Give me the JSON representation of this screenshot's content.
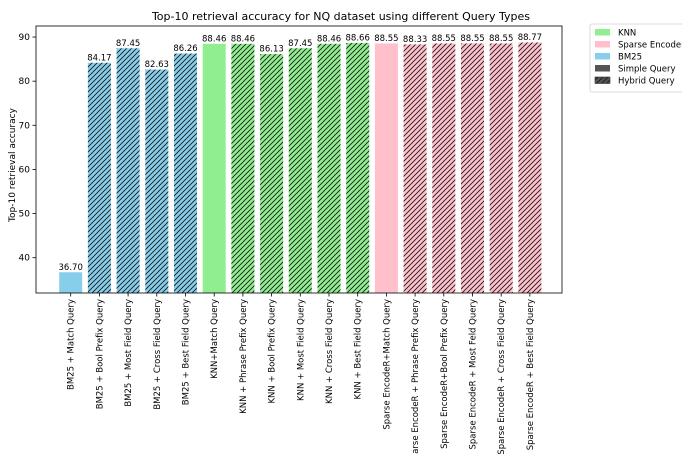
{
  "chart_data": {
    "type": "bar",
    "title": "Top-10 retrieval accuracy for NQ dataset using different Query Types",
    "xlabel": "",
    "ylabel": "Top-10 retrieval accuracy",
    "ylim": [
      32,
      92.5
    ],
    "yticks": [
      40,
      50,
      60,
      70,
      80,
      90
    ],
    "grid": false,
    "legend_position": "outside-top-right",
    "categories": [
      "BM25 + Match Query",
      "BM25 + Bool Prefix Query",
      "BM25 + Most Field Query",
      "BM25 + Cross Field Query",
      "BM25 + Best Field Query",
      "KNN+Match Query",
      "KNN + Phrase Prefix Query",
      "KNN + Bool Prefix Query",
      "KNN + Most  Field Query",
      "KNN  + Cross Field Query",
      "KNN +  Best Field Query",
      "Sparse EncodeR+Match Query",
      "Sparse EncodeR + Phrase Prefix Query",
      "Sparse EncodeR+Bool Prefix Query",
      "Sparse EncodeR + Most  Feld Query",
      "Sparse EncodeR  + Cross Field Query",
      "Sparse EncodeR  + Best Field Query"
    ],
    "values": [
      36.7,
      84.17,
      87.45,
      82.63,
      86.26,
      88.46,
      88.46,
      86.13,
      87.45,
      88.46,
      88.66,
      88.55,
      88.33,
      88.55,
      88.55,
      88.55,
      88.77
    ],
    "value_labels": [
      "36.70",
      "84.17",
      "87.45",
      "82.63",
      "86.26",
      "88.46",
      "88.46",
      "86.13",
      "87.45",
      "88.46",
      "88.66",
      "88.55",
      "88.33",
      "88.55",
      "88.55",
      "88.55",
      "88.77"
    ],
    "group": [
      "bm25",
      "bm25",
      "bm25",
      "bm25",
      "bm25",
      "knn",
      "knn",
      "knn",
      "knn",
      "knn",
      "knn",
      "sparse",
      "sparse",
      "sparse",
      "sparse",
      "sparse",
      "sparse"
    ],
    "hatched": [
      false,
      true,
      true,
      true,
      true,
      false,
      true,
      true,
      true,
      true,
      true,
      false,
      true,
      true,
      true,
      true,
      true
    ],
    "colors": {
      "knn": "#90ee90",
      "sparse": "#ffc0cb",
      "bm25": "#87ceeb"
    },
    "legend": [
      {
        "label": "KNN",
        "kind": "color",
        "key": "knn"
      },
      {
        "label": "Sparse EncodeR",
        "kind": "color",
        "key": "sparse"
      },
      {
        "label": "BM25",
        "kind": "color",
        "key": "bm25"
      },
      {
        "label": "Simple Query",
        "kind": "simple"
      },
      {
        "label": "Hybrid Query",
        "kind": "hybrid"
      }
    ]
  }
}
